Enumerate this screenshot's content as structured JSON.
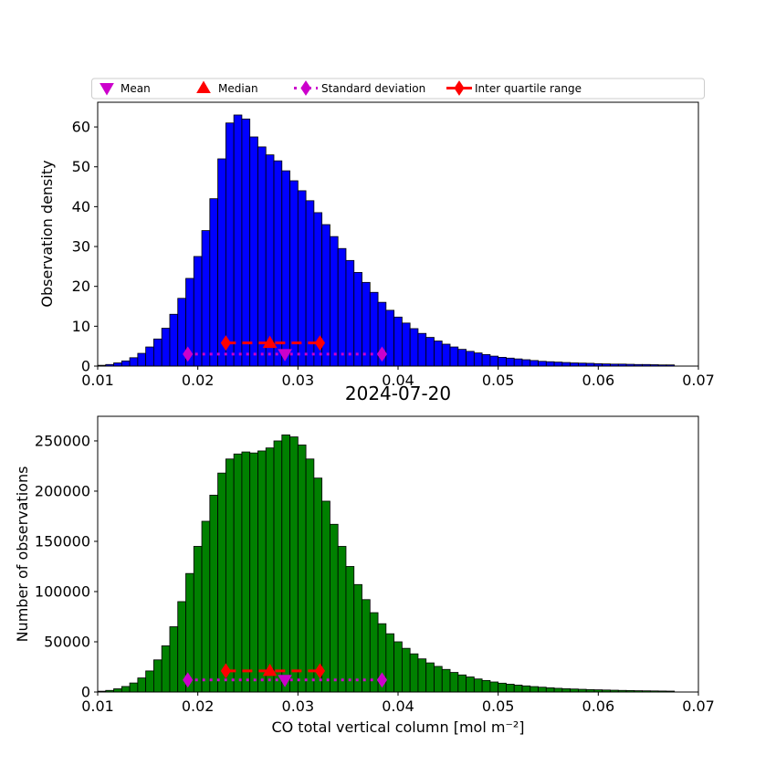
{
  "figure": {
    "legend": {
      "items": [
        {
          "label": "Mean",
          "marker": "triangle-down",
          "color": "#CC00CC",
          "line": "none"
        },
        {
          "label": "Median",
          "marker": "triangle-up",
          "color": "#FF0000",
          "line": "none"
        },
        {
          "label": "Standard deviation",
          "marker": "diamond",
          "color": "#CC00CC",
          "line": "dotted"
        },
        {
          "label": "Inter quartile range",
          "marker": "diamond",
          "color": "#FF0000",
          "line": "dashed"
        }
      ]
    }
  },
  "chart_data": [
    {
      "type": "bar",
      "title": "",
      "ylabel": "Observation density",
      "xlabel": "",
      "bar_color": "#0000FF",
      "edge_color": "#000000",
      "grid": false,
      "bin_start": 0.01,
      "bin_width": 0.0008,
      "xlim": [
        0.01,
        0.07
      ],
      "ylim": [
        0,
        66.2
      ],
      "xticks": [
        0.01,
        0.02,
        0.03,
        0.04,
        0.05,
        0.06,
        0.07
      ],
      "xtick_labels": [
        "0.01",
        "0.02",
        "0.03",
        "0.04",
        "0.05",
        "0.06",
        "0.07"
      ],
      "yticks": [
        0,
        10,
        20,
        30,
        40,
        50,
        60
      ],
      "ytick_labels": [
        "0",
        "10",
        "20",
        "30",
        "40",
        "50",
        "60"
      ],
      "values": [
        0.2,
        0.4,
        0.8,
        1.3,
        2.1,
        3.2,
        4.8,
        6.8,
        9.5,
        13,
        17,
        22,
        27.5,
        34,
        42,
        52,
        61,
        63,
        62,
        57.5,
        55,
        53,
        51.5,
        49,
        46.5,
        44,
        41.5,
        38.5,
        35.5,
        32.5,
        29.5,
        26.5,
        23.5,
        21,
        18.5,
        16,
        14,
        12.3,
        10.8,
        9.4,
        8.2,
        7.2,
        6.3,
        5.5,
        4.8,
        4.2,
        3.7,
        3.3,
        2.9,
        2.5,
        2.2,
        2,
        1.8,
        1.6,
        1.4,
        1.2,
        1.1,
        1,
        0.9,
        0.8,
        0.75,
        0.7,
        0.6,
        0.55,
        0.5,
        0.5,
        0.45,
        0.4,
        0.4,
        0.35,
        0.3,
        0.3,
        0,
        0,
        0
      ],
      "stats": {
        "mean": 0.0287,
        "median": 0.0272,
        "std_range": [
          0.019,
          0.0384
        ],
        "iqr_range": [
          0.0228,
          0.0322
        ],
        "std_line_y": 3.0,
        "iqr_line_y": 5.8,
        "mean_color": "#CC00CC",
        "median_color": "#FF0000"
      }
    },
    {
      "type": "bar",
      "title": "2024-07-20",
      "ylabel": "Number of observations",
      "xlabel": "CO total vertical column [mol m⁻²]",
      "bar_color": "#008000",
      "edge_color": "#000000",
      "grid": false,
      "bin_start": 0.01,
      "bin_width": 0.0008,
      "xlim": [
        0.01,
        0.07
      ],
      "ylim": [
        0,
        274500
      ],
      "xticks": [
        0.01,
        0.02,
        0.03,
        0.04,
        0.05,
        0.06,
        0.07
      ],
      "xtick_labels": [
        "0.01",
        "0.02",
        "0.03",
        "0.04",
        "0.05",
        "0.06",
        "0.07"
      ],
      "yticks": [
        0,
        50000,
        100000,
        150000,
        200000,
        250000
      ],
      "ytick_labels": [
        "0",
        "50000",
        "100000",
        "150000",
        "200000",
        "250000"
      ],
      "values": [
        800,
        1600,
        3200,
        5500,
        9000,
        14000,
        21000,
        32000,
        46000,
        65000,
        90000,
        118000,
        145000,
        170000,
        196000,
        218000,
        232000,
        237000,
        239000,
        238000,
        240000,
        243000,
        250000,
        256000,
        254000,
        246000,
        232000,
        213000,
        190000,
        167000,
        145000,
        125000,
        107000,
        92000,
        79000,
        68000,
        58000,
        50000,
        43500,
        38000,
        33000,
        29000,
        25500,
        22500,
        19500,
        17000,
        15000,
        13000,
        11500,
        10000,
        8800,
        7800,
        6900,
        6100,
        5400,
        4800,
        4200,
        3700,
        3300,
        3000,
        2700,
        2400,
        2200,
        2000,
        1800,
        1600,
        1500,
        1300,
        1200,
        1100,
        1000,
        900,
        0,
        0,
        0
      ],
      "stats": {
        "mean": 0.0287,
        "median": 0.0272,
        "std_range": [
          0.019,
          0.0384
        ],
        "iqr_range": [
          0.0228,
          0.0322
        ],
        "std_line_y": 12000,
        "iqr_line_y": 21000,
        "mean_color": "#CC00CC",
        "median_color": "#FF0000"
      }
    }
  ]
}
